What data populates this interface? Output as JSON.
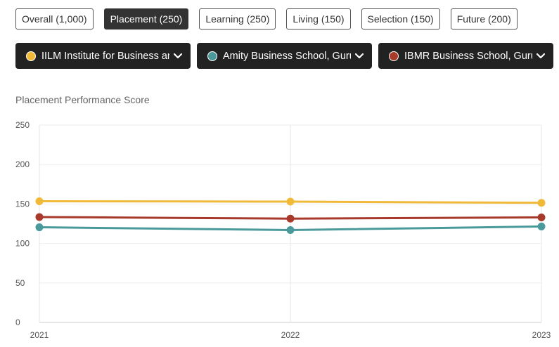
{
  "tabs": [
    {
      "label": "Overall (1,000)",
      "active": false
    },
    {
      "label": "Placement (250)",
      "active": true
    },
    {
      "label": "Learning (250)",
      "active": false
    },
    {
      "label": "Living (150)",
      "active": false
    },
    {
      "label": "Selection (150)",
      "active": false
    },
    {
      "label": "Future (200)",
      "active": false
    }
  ],
  "selectors": [
    {
      "label": "IILM Institute for Business and Management",
      "color": "#f0b93a"
    },
    {
      "label": "Amity Business School, Gurugram",
      "color": "#4a9a9c"
    },
    {
      "label": "IBMR Business School, Gurugram",
      "color": "#a83a2b"
    }
  ],
  "chart_data": {
    "type": "line",
    "title": "Placement Performance Score",
    "x": [
      "2021",
      "2022",
      "2023"
    ],
    "ylim": [
      0,
      250
    ],
    "yticks": [
      0,
      50,
      100,
      150,
      200,
      250
    ],
    "grid": true,
    "series": [
      {
        "name": "IILM Institute for Business and Management",
        "color": "#f0b93a",
        "values": [
          153.5,
          153,
          151.5
        ]
      },
      {
        "name": "Amity Business School, Gurugram",
        "color": "#4a9a9c",
        "values": [
          120.5,
          117,
          121.5
        ]
      },
      {
        "name": "IBMR Business School, Gurugram",
        "color": "#a83a2b",
        "values": [
          133.5,
          131.5,
          133
        ]
      }
    ]
  }
}
